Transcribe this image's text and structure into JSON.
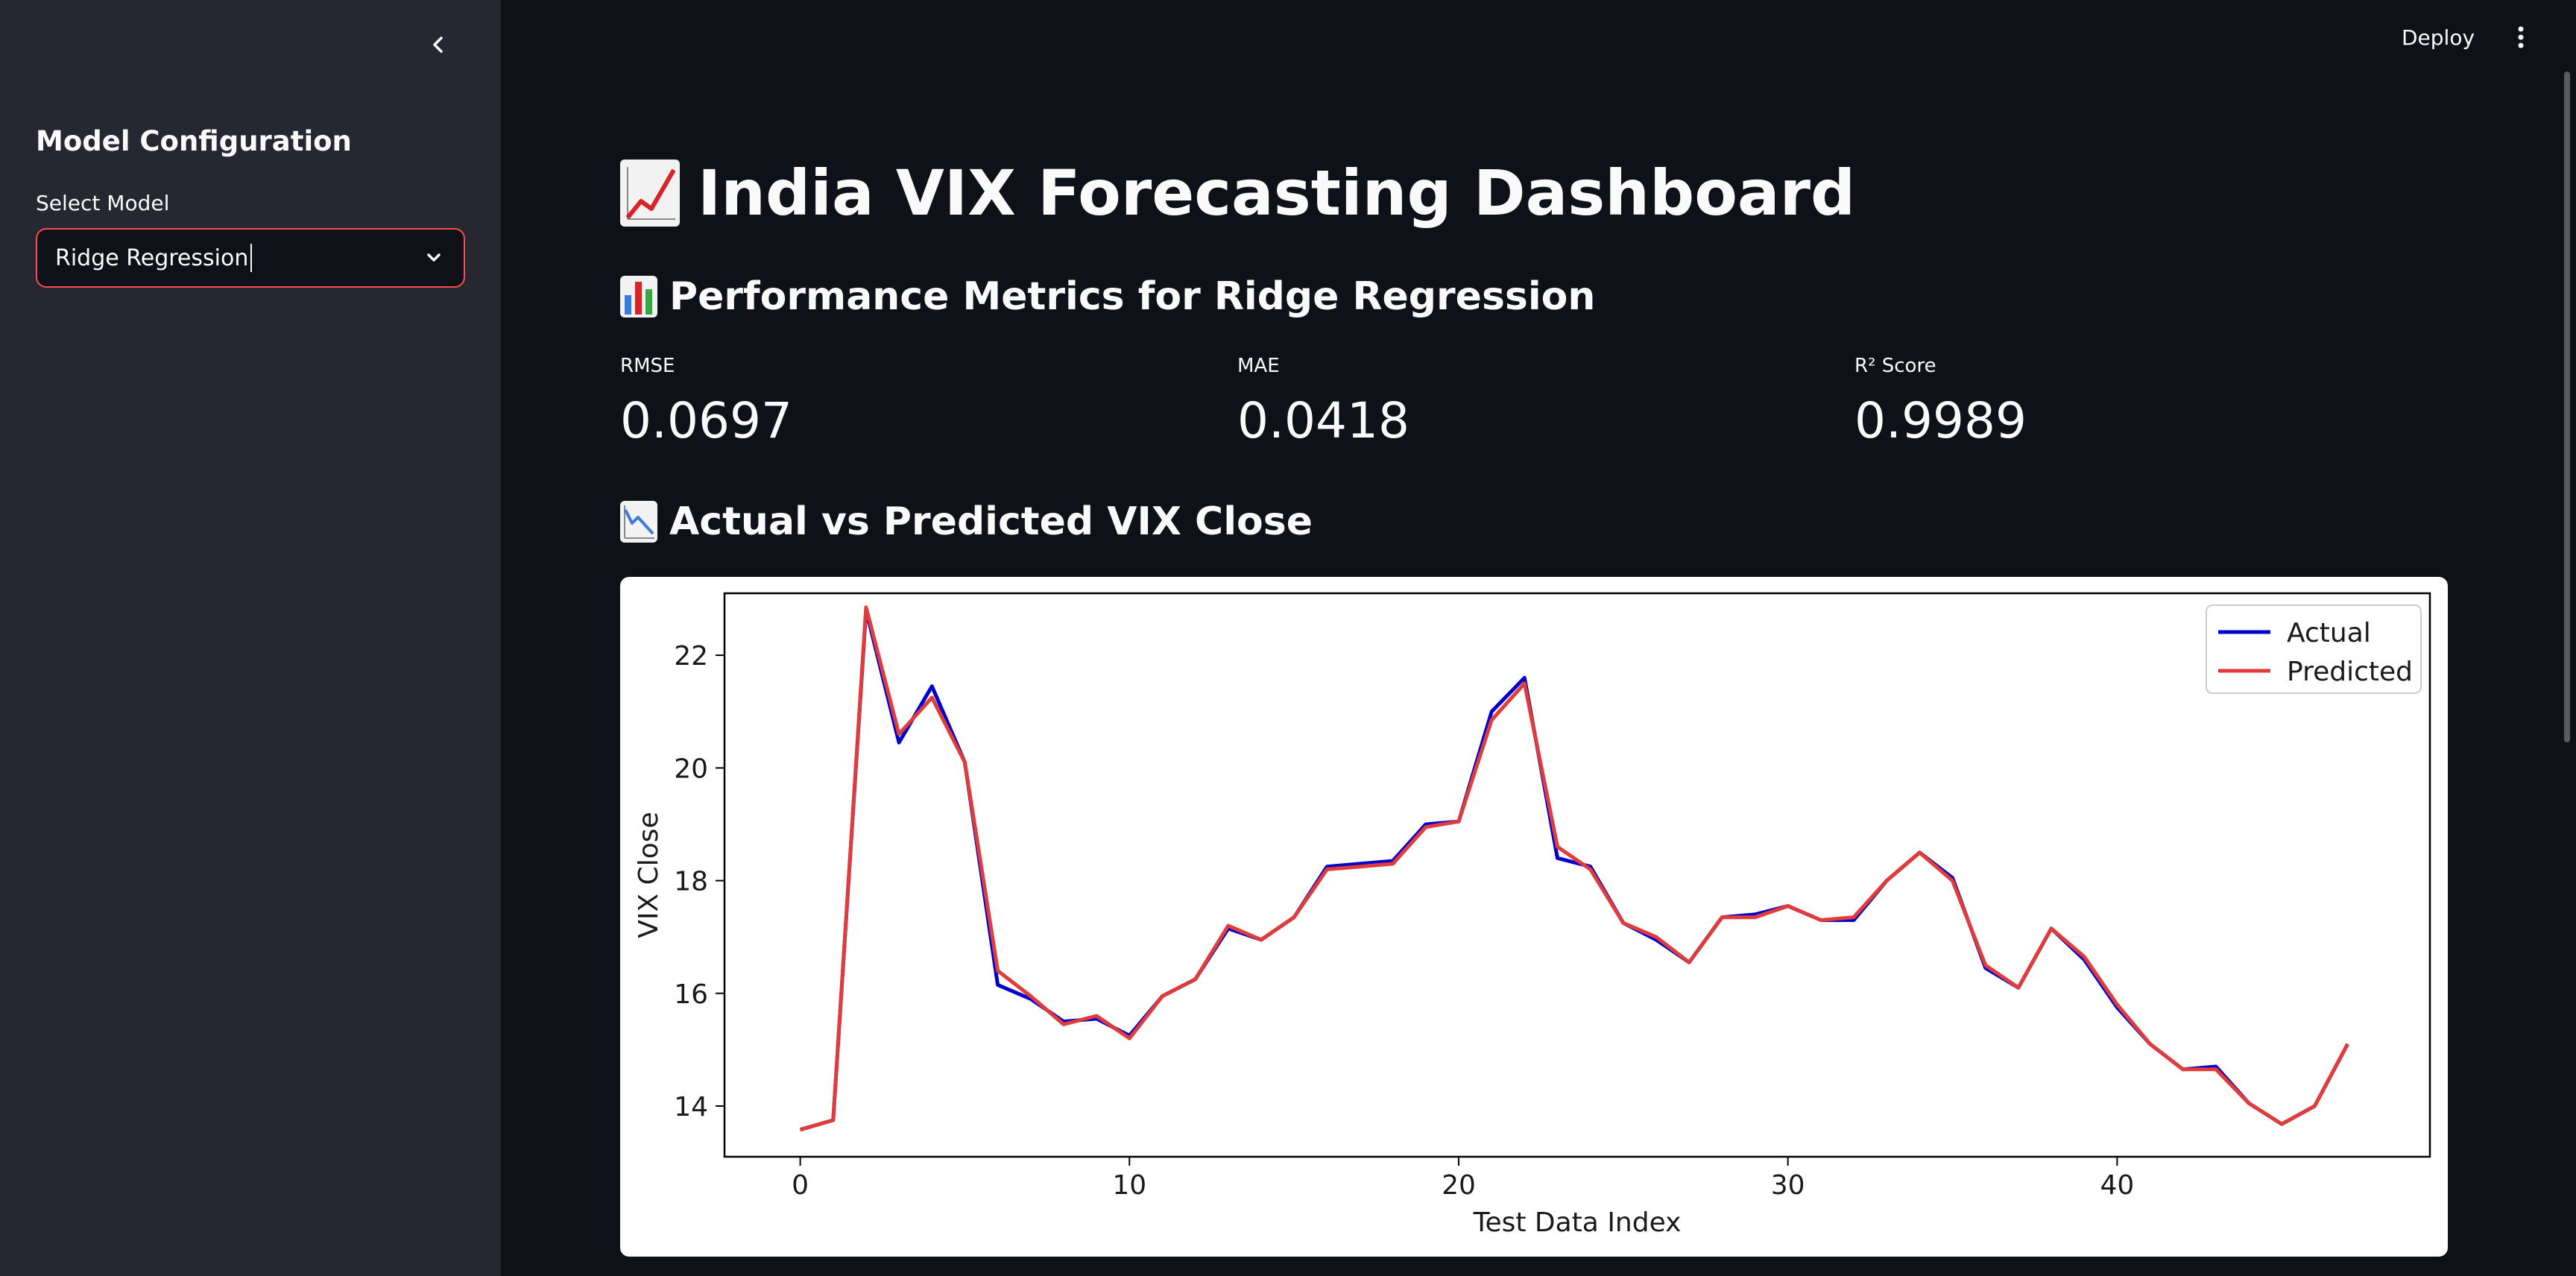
{
  "sidebar": {
    "title": "Model Configuration",
    "select_label": "Select Model",
    "select_value": "Ridge Regression"
  },
  "header": {
    "deploy_label": "Deploy"
  },
  "main": {
    "title": "India VIX Forecasting Dashboard",
    "metrics_heading": "Performance Metrics for Ridge Regression",
    "metrics": [
      {
        "label": "RMSE",
        "value": "0.0697"
      },
      {
        "label": "MAE",
        "value": "0.0418"
      },
      {
        "label": "R² Score",
        "value": "0.9989"
      }
    ],
    "chart_heading": "Actual vs Predicted VIX Close"
  },
  "icons": {
    "collapse": "chevron-left-icon",
    "select": "chevron-down-icon",
    "menu": "kebab-menu-icon",
    "title_emoji": "chart-increasing-icon",
    "metrics_emoji": "bar-chart-icon",
    "chart_emoji": "chart-decreasing-icon"
  },
  "colors": {
    "accent": "#ff4b4b",
    "actual": "#0000cc",
    "predicted": "#e03c3c"
  },
  "chart_data": {
    "type": "line",
    "xlabel": "Test Data Index",
    "ylabel": "VIX Close",
    "xlim": [
      -2.3,
      49.5
    ],
    "ylim": [
      13.1,
      23.1
    ],
    "xticks": [
      0,
      10,
      20,
      30,
      40
    ],
    "yticks": [
      14,
      16,
      18,
      20,
      22
    ],
    "legend_position": "top-right",
    "grid": false,
    "x": [
      0,
      1,
      2,
      3,
      4,
      5,
      6,
      7,
      8,
      9,
      10,
      11,
      12,
      13,
      14,
      15,
      16,
      17,
      18,
      19,
      20,
      21,
      22,
      23,
      24,
      25,
      26,
      27,
      28,
      29,
      30,
      31,
      32,
      33,
      34,
      35,
      36,
      37,
      38,
      39,
      40,
      41,
      42,
      43,
      44,
      45,
      46,
      47
    ],
    "series": [
      {
        "name": "Actual",
        "color": "#0000cc",
        "values": [
          13.58,
          13.75,
          22.8,
          20.45,
          21.45,
          20.1,
          16.15,
          15.9,
          15.5,
          15.55,
          15.25,
          15.95,
          16.25,
          17.15,
          16.95,
          17.35,
          18.25,
          18.3,
          18.35,
          19.0,
          19.05,
          21.0,
          21.6,
          18.4,
          18.25,
          17.25,
          16.95,
          16.55,
          17.35,
          17.4,
          17.55,
          17.3,
          17.3,
          18.0,
          18.5,
          18.05,
          16.45,
          16.1,
          17.15,
          16.6,
          15.75,
          15.1,
          14.65,
          14.7,
          14.05,
          13.68,
          14.0,
          15.1
        ]
      },
      {
        "name": "Predicted",
        "color": "#e03c3c",
        "values": [
          13.58,
          13.75,
          22.85,
          20.6,
          21.25,
          20.1,
          16.4,
          15.95,
          15.45,
          15.6,
          15.2,
          15.95,
          16.25,
          17.2,
          16.95,
          17.35,
          18.2,
          18.25,
          18.3,
          18.95,
          19.05,
          20.85,
          21.5,
          18.6,
          18.2,
          17.25,
          17.0,
          16.55,
          17.35,
          17.35,
          17.55,
          17.3,
          17.35,
          18.0,
          18.5,
          18.0,
          16.5,
          16.1,
          17.15,
          16.65,
          15.8,
          15.1,
          14.65,
          14.65,
          14.05,
          13.68,
          14.0,
          15.1
        ]
      }
    ]
  }
}
